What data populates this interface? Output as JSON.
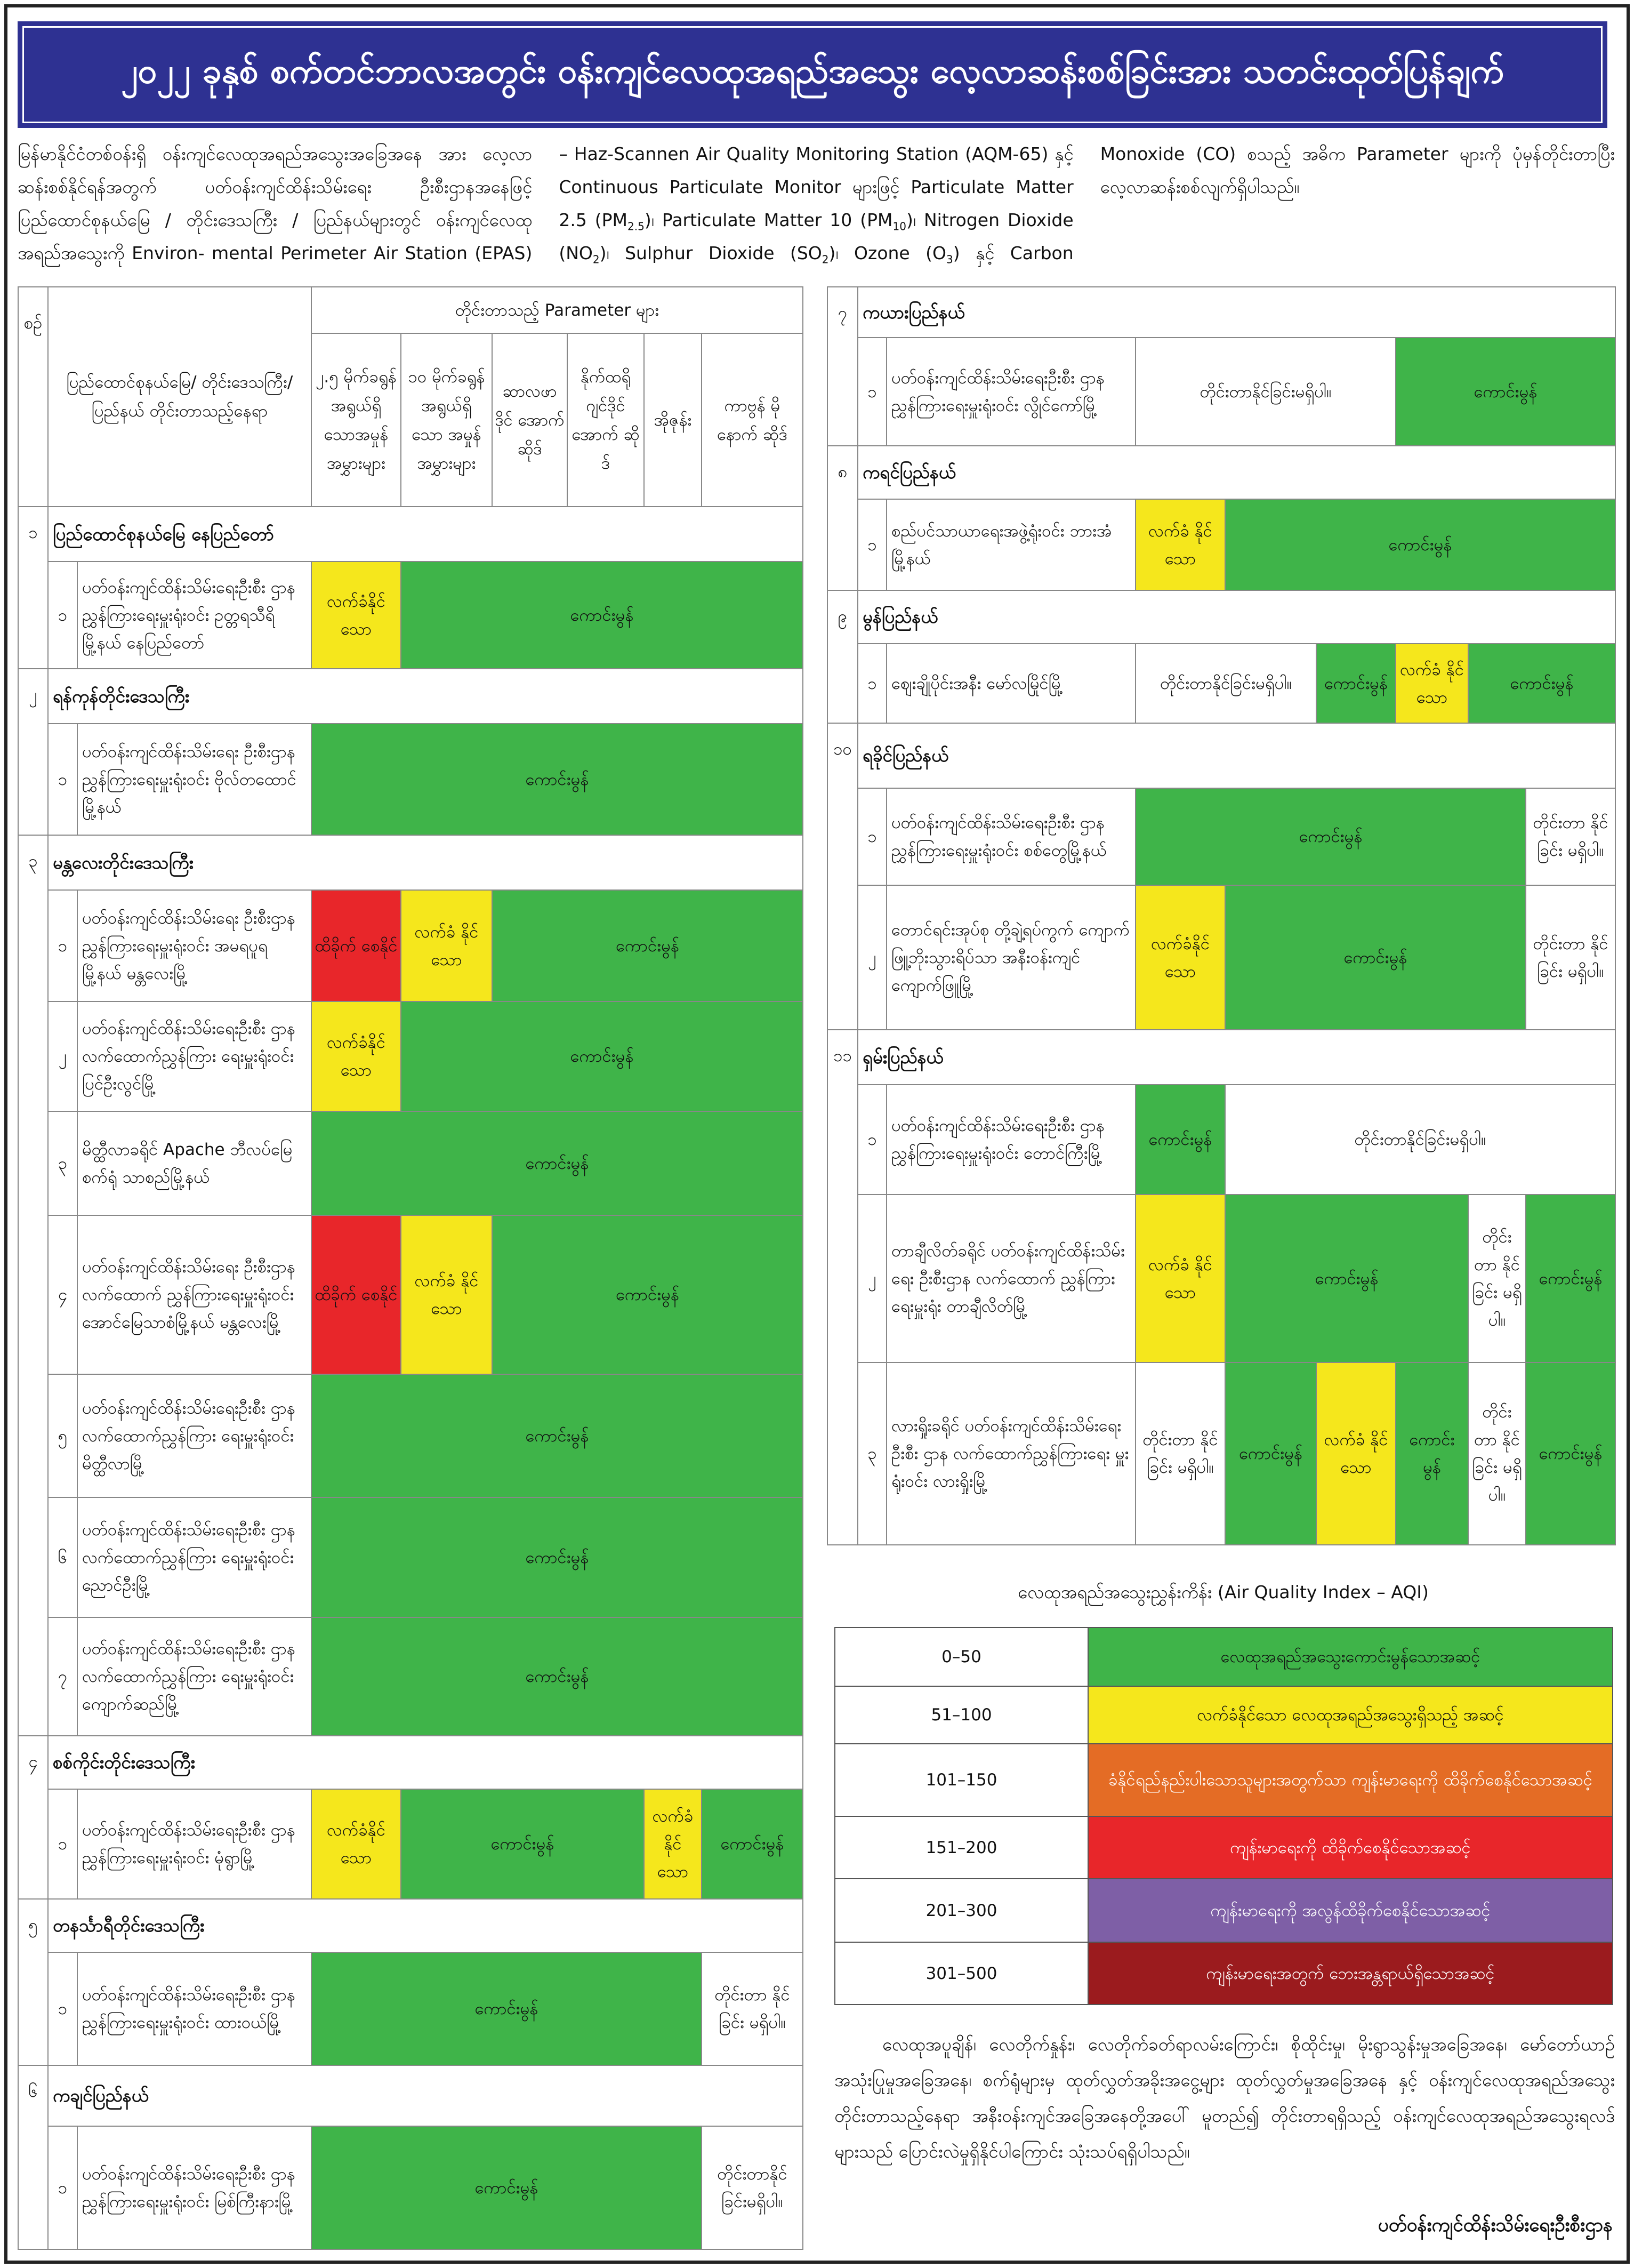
{
  "title": "၂၀၂၂ ခုနှစ် စက်တင်ဘာလအတွင်း ဝန်းကျင်လေထုအရည်အသွေး လေ့လာဆန်းစစ်ခြင်းအား သတင်းထုတ်ပြန်ချက်",
  "intro": {
    "p1": "မြန်မာနိုင်ငံတစ်ဝန်းရှိ ဝန်းကျင်လေထုအရည်အသွေးအခြေအနေ အား လေ့လာဆန်းစစ်နိုင်ရန်အတွက် ပတ်ဝန်းကျင်ထိန်းသိမ်းရေး ဦးစီးဌာနအနေဖြင့် ပြည်ထောင်စုနယ်မြေ / တိုင်းဒေသကြီး / ပြည်နယ်များတွင် ဝန်းကျင်လေထုအရည်အသွေးကို Environ- mental Perimeter Air Station (EPAS) – Haz-Scannen Air Quality Monitoring Station (AQM-65) နှင့် Continuous Particulate Monitor များဖြင့် Particulate Matter 2.5 (PM",
    "s1": "2.5",
    "p2": ")၊ Particulate Matter 10 (PM",
    "s2": "10",
    "p3": ")၊ Nitrogen Dioxide (NO",
    "s3": "2",
    "p4": ")၊ Sulphur Dioxide (SO",
    "s4": "2",
    "p5": ")၊ Ozone (O",
    "s5": "3",
    "p6": ") နှင့် Carbon Monoxide (CO) စသည့် အဓိက Parameter များကို ပုံမှန်တိုင်းတာပြီး လေ့လာဆန်းစစ်လျက်ရှိပါသည်။"
  },
  "header": {
    "no": "စဉ်",
    "location": "ပြည်ထောင်စုနယ်မြေ/ တိုင်းဒေသကြီး/ပြည်နယ် တိုင်းတာသည့်နေရာ",
    "params_title": "တိုင်းတာသည့် Parameter များ",
    "params": [
      "၂.၅ မိုက်ခရွန် အရွယ်ရှိ သောအမှုန် အမွှားများ",
      "၁၀ မိုက်ခရွန် အရွယ်ရှိ သော အမှုန် အမွှားများ",
      "ဆာလဖာ ဒိုင် အောက် ဆိုဒ်",
      "နိုက်ထရို ဂျင်ဒိုင် အောက် ဆိုဒ်",
      "အိုဇုန်း",
      "ကာဗွန် မိုနောက် ဆိုဒ်"
    ]
  },
  "colors": {
    "green": "#3fb449",
    "yellow": "#f5e71c",
    "red": "#e8262a"
  },
  "left": {
    "sections": [
      {
        "no": "၁",
        "name": "ပြည်ထောင်စုနယ်မြေ နေပြည်တော်",
        "rows": [
          {
            "no": "၁",
            "name": "ပတ်ဝန်းကျင်ထိန်းသိမ်းရေးဦးစီး ဌာန ညွှန်ကြားရေးမှူးရုံးဝင်း ဥတ္တရသီရိမြို့နယ် နေပြည်တော်",
            "cells": [
              {
                "text": "လက်ခံနိုင် သော",
                "color": "yellow",
                "span": 1
              },
              {
                "text": "ကောင်းမွန်",
                "color": "green",
                "span": 5
              }
            ]
          }
        ]
      },
      {
        "no": "၂",
        "name": "ရန်ကုန်တိုင်းဒေသကြီး",
        "rows": [
          {
            "no": "၁",
            "name": "ပတ်ဝန်းကျင်ထိန်းသိမ်းရေး ဦးစီးဌာန ညွှန်ကြားရေးမှူးရုံးဝင်း ဗိုလ်တထောင်မြို့နယ်",
            "cells": [
              {
                "text": "ကောင်းမွန်",
                "color": "green",
                "span": 6
              }
            ]
          }
        ]
      },
      {
        "no": "၃",
        "name": "မန္တလေးတိုင်းဒေသကြီး",
        "rows": [
          {
            "no": "၁",
            "name": "ပတ်ဝန်းကျင်ထိန်းသိမ်းရေး ဦးစီးဌာန ညွှန်ကြားရေးမှူးရုံးဝင်း အမရပူရမြို့နယ် မန္တလေးမြို့",
            "cells": [
              {
                "text": "ထိခိုက် စေနိုင်",
                "color": "red",
                "span": 1
              },
              {
                "text": "လက်ခံ နိုင်သော",
                "color": "yellow",
                "span": 1
              },
              {
                "text": "ကောင်းမွန်",
                "color": "green",
                "span": 4
              }
            ]
          },
          {
            "no": "၂",
            "name": "ပတ်ဝန်းကျင်ထိန်းသိမ်းရေးဦးစီး ဌာန လက်ထောက်ညွှန်ကြား ရေးမှူးရုံးဝင်း ပြင်ဦးလွင်မြို့",
            "cells": [
              {
                "text": "လက်ခံနိုင် သော",
                "color": "yellow",
                "span": 1
              },
              {
                "text": "ကောင်းမွန်",
                "color": "green",
                "span": 5
              }
            ]
          },
          {
            "no": "၃",
            "name": "မိတ္ထီလာခရိုင် Apache ဘီလပ်မြေစက်ရုံ သာစည်မြို့နယ်",
            "cells": [
              {
                "text": "ကောင်းမွန်",
                "color": "green",
                "span": 6
              }
            ]
          },
          {
            "no": "၄",
            "name": "ပတ်ဝန်းကျင်ထိန်းသိမ်းရေး ဦးစီးဌာန လက်ထောက် ညွှန်ကြားရေးမှူးရုံးဝင်း အောင်မြေသာစံမြို့နယ် မန္တလေးမြို့",
            "cells": [
              {
                "text": "ထိခိုက် စေနိုင်",
                "color": "red",
                "span": 1
              },
              {
                "text": "လက်ခံ နိုင်သော",
                "color": "yellow",
                "span": 1
              },
              {
                "text": "ကောင်းမွန်",
                "color": "green",
                "span": 4
              }
            ]
          },
          {
            "no": "၅",
            "name": "ပတ်ဝန်းကျင်ထိန်းသိမ်းရေးဦးစီး ဌာန လက်ထောက်ညွှန်ကြား ရေးမှူးရုံးဝင်း မိတ္ထီလာမြို့",
            "cells": [
              {
                "text": "ကောင်းမွန်",
                "color": "green",
                "span": 6
              }
            ]
          },
          {
            "no": "၆",
            "name": "ပတ်ဝန်းကျင်ထိန်းသိမ်းရေးဦးစီး ဌာန လက်ထောက်ညွှန်ကြား ရေးမှူးရုံးဝင်း ညောင်ဦးမြို့",
            "cells": [
              {
                "text": "ကောင်းမွန်",
                "color": "green",
                "span": 6
              }
            ]
          },
          {
            "no": "၇",
            "name": "ပတ်ဝန်းကျင်ထိန်းသိမ်းရေးဦးစီး ဌာန လက်ထောက်ညွှန်ကြား ရေးမှူးရုံးဝင်း ကျောက်ဆည်မြို့",
            "cells": [
              {
                "text": "ကောင်းမွန်",
                "color": "green",
                "span": 6
              }
            ]
          }
        ]
      },
      {
        "no": "၄",
        "name": "စစ်ကိုင်းတိုင်းဒေသကြီး",
        "rows": [
          {
            "no": "၁",
            "name": "ပတ်ဝန်းကျင်ထိန်းသိမ်းရေးဦးစီး ဌာန ညွှန်ကြားရေးမှူးရုံးဝင်း မုံရွာမြို့",
            "cells": [
              {
                "text": "လက်ခံနိုင် သော",
                "color": "yellow",
                "span": 1
              },
              {
                "text": "ကောင်းမွန်",
                "color": "green",
                "span": 3
              },
              {
                "text": "လက်ခံ နိုင် သော",
                "color": "yellow",
                "span": 1
              },
              {
                "text": "ကောင်းမွန်",
                "color": "green",
                "span": 1
              }
            ]
          }
        ]
      },
      {
        "no": "၅",
        "name": "တနင်္သာရီတိုင်းဒေသကြီး",
        "rows": [
          {
            "no": "၁",
            "name": "ပတ်ဝန်းကျင်ထိန်းသိမ်းရေးဦးစီး ဌာန ညွှန်ကြားရေးမှူးရုံးဝင်း ထားဝယ်မြို့",
            "cells": [
              {
                "text": "ကောင်းမွန်",
                "color": "green",
                "span": 5
              },
              {
                "text": "တိုင်းတာ နိုင်ခြင်း မရှိပါ။",
                "color": "white",
                "span": 1
              }
            ]
          }
        ]
      },
      {
        "no": "၆",
        "name": "ကချင်ပြည်နယ်",
        "rows": [
          {
            "no": "၁",
            "name": "ပတ်ဝန်းကျင်ထိန်းသိမ်းရေးဦးစီး ဌာန ညွှန်ကြားရေးမှူးရုံးဝင်း မြစ်ကြီးနားမြို့",
            "cells": [
              {
                "text": "ကောင်းမွန်",
                "color": "green",
                "span": 5
              },
              {
                "text": "တိုင်းတာနိုင် ခြင်းမရှိပါ။",
                "color": "white",
                "span": 1
              }
            ]
          }
        ]
      }
    ]
  },
  "right": {
    "sections": [
      {
        "no": "၇",
        "name": "ကယားပြည်နယ်",
        "rows": [
          {
            "no": "၁",
            "name": "ပတ်ဝန်းကျင်ထိန်းသိမ်းရေးဦးစီး ဌာန ညွှန်ကြားရေးမှူးရုံးဝင်း လွိုင်ကော်မြို့",
            "cells": [
              {
                "text": "တိုင်းတာနိုင်ခြင်းမရှိပါ။",
                "color": "white",
                "span": 3
              },
              {
                "text": "ကောင်းမွန်",
                "color": "green",
                "span": 3
              }
            ]
          }
        ]
      },
      {
        "no": "၈",
        "name": "ကရင်ပြည်နယ်",
        "rows": [
          {
            "no": "၁",
            "name": "စည်ပင်သာယာရေးအဖွဲ့ရုံးဝင်း ဘားအံမြို့နယ်",
            "cells": [
              {
                "text": "လက်ခံ နိုင်သော",
                "color": "yellow",
                "span": 1
              },
              {
                "text": "ကောင်းမွန်",
                "color": "green",
                "span": 5
              }
            ]
          }
        ]
      },
      {
        "no": "၉",
        "name": "မွန်ပြည်နယ်",
        "rows": [
          {
            "no": "၁",
            "name": "ဈေးချိုပိုင်းအနီး မော်လမြိုင်မြို့",
            "cells": [
              {
                "text": "တိုင်းတာနိုင်ခြင်းမရှိပါ။",
                "color": "white",
                "span": 2
              },
              {
                "text": "ကောင်းမွန်",
                "color": "green",
                "span": 1
              },
              {
                "text": "လက်ခံ နိုင်သော",
                "color": "yellow",
                "span": 1
              },
              {
                "text": "ကောင်းမွန်",
                "color": "green",
                "span": 2
              }
            ]
          }
        ]
      },
      {
        "no": "၁၀",
        "name": "ရခိုင်ပြည်နယ်",
        "rows": [
          {
            "no": "၁",
            "name": "ပတ်ဝန်းကျင်ထိန်းသိမ်းရေးဦးစီး ဌာန ညွှန်ကြားရေးမှူးရုံးဝင်း စစ်တွေမြို့နယ်",
            "cells": [
              {
                "text": "ကောင်းမွန်",
                "color": "green",
                "span": 5
              },
              {
                "text": "တိုင်းတာ နိုင်ခြင်း မရှိပါ။",
                "color": "white",
                "span": 1
              }
            ]
          },
          {
            "no": "၂",
            "name": "တောင်ရင်းအုပ်စု တို့ချဲ့ရပ်ကွက် ကျောက်ဖြူ့ဘိုးသွားရိပ်သာ အနီးဝန်းကျင် ကျောက်ဖြူမြို့",
            "cells": [
              {
                "text": "လက်ခံနိုင် သော",
                "color": "yellow",
                "span": 1
              },
              {
                "text": "ကောင်းမွန်",
                "color": "green",
                "span": 4
              },
              {
                "text": "တိုင်းတာ နိုင်ခြင်း မရှိပါ။",
                "color": "white",
                "span": 1
              }
            ]
          }
        ]
      },
      {
        "no": "၁၁",
        "name": "ရှမ်းပြည်နယ်",
        "rows": [
          {
            "no": "၁",
            "name": "ပတ်ဝန်းကျင်ထိန်းသိမ်းရေးဦးစီး ဌာန ညွှန်ကြားရေးမှူးရုံးဝင်း တောင်ကြီးမြို့",
            "cells": [
              {
                "text": "ကောင်းမွန်",
                "color": "green",
                "span": 1
              },
              {
                "text": "တိုင်းတာနိုင်ခြင်းမရှိပါ။",
                "color": "white",
                "span": 5
              }
            ]
          },
          {
            "no": "၂",
            "name": "တာချီလိတ်ခရိုင် ပတ်ဝန်းကျင်ထိန်းသိမ်းရေး ဦးစီးဌာန လက်ထောက် ညွှန်ကြားရေးမှူးရုံး တာချီလိတ်မြို့",
            "cells": [
              {
                "text": "လက်ခံ နိုင်သော",
                "color": "yellow",
                "span": 1
              },
              {
                "text": "ကောင်းမွန်",
                "color": "green",
                "span": 3
              },
              {
                "text": "တိုင်း တာ နိုင် ခြင်း မရှိပါ။",
                "color": "white",
                "span": 1
              },
              {
                "text": "ကောင်းမွန်",
                "color": "green",
                "span": 1
              }
            ]
          },
          {
            "no": "၃",
            "name": "လားရှိုးခရိုင် ပတ်ဝန်းကျင်ထိန်းသိမ်းရေးဦးစီး ဌာန လက်ထောက်ညွှန်ကြားရေး မှူးရုံးဝင်း လားရှိုးမြို့",
            "cells": [
              {
                "text": "တိုင်းတာ နိုင်ခြင်း မရှိပါ။",
                "color": "white",
                "span": 1
              },
              {
                "text": "ကောင်းမွန်",
                "color": "green",
                "span": 1
              },
              {
                "text": "လက်ခံ နိုင်သော",
                "color": "yellow",
                "span": 1
              },
              {
                "text": "ကောင်း မွန်",
                "color": "green",
                "span": 1
              },
              {
                "text": "တိုင်း တာ နိုင် ခြင်း မရှိပါ။",
                "color": "white",
                "span": 1
              },
              {
                "text": "ကောင်းမွန်",
                "color": "green",
                "span": 1
              }
            ]
          }
        ]
      }
    ]
  },
  "aqi": {
    "title": "လေထုအရည်အသွေးညွှန်းကိန်း (Air Quality Index – AQI)",
    "rows": [
      {
        "range": "0–50",
        "label": "လေထုအရည်အသွေးကောင်းမွန်သောအဆင့်",
        "color": "#3fb449",
        "text_color": "#111"
      },
      {
        "range": "51–100",
        "label": "လက်ခံနိုင်သော လေထုအရည်အသွေးရှိသည့် အဆင့်",
        "color": "#f5e71c",
        "text_color": "#111"
      },
      {
        "range": "101–150",
        "label": "ခံနိုင်ရည်နည်းပါးသောသူများအတွက်သာ ကျန်းမာရေးကို ထိခိုက်စေနိုင်သောအဆင့်",
        "color": "#e46c25",
        "text_color": "#fff"
      },
      {
        "range": "151–200",
        "label": "ကျန်းမာရေးကို ထိခိုက်စေနိုင်သောအဆင့်",
        "color": "#e8262a",
        "text_color": "#fff"
      },
      {
        "range": "201–300",
        "label": "ကျန်းမာရေးကို အလွန်ထိခိုက်စေနိုင်သောအဆင့်",
        "color": "#7e5fa6",
        "text_color": "#fff"
      },
      {
        "range": "301–500",
        "label": "ကျန်းမာရေးအတွက် ဘေးအန္တရာယ်ရှိသောအဆင့်",
        "color": "#9b1b1e",
        "text_color": "#fff"
      }
    ]
  },
  "note": "လေထုအပူချိန်၊ လေတိုက်နှုန်း၊ လေတိုက်ခတ်ရာလမ်းကြောင်း၊ စိုထိုင်းမှု၊ မိုးရွာသွန်းမှုအခြေအနေ၊ မော်တော်ယာဉ်အသုံးပြုမှုအခြေအနေ၊ စက်ရုံများမှ ထုတ်လွှတ်အခိုးအငွေ့များ ထုတ်လွှတ်မှုအခြေအနေ နှင့် ဝန်းကျင်လေထုအရည်အသွေးတိုင်းတာသည့်နေရာ အနီးဝန်းကျင်အခြေအနေတို့အပေါ် မူတည်၍ တိုင်းတာရရှိသည့် ဝန်းကျင်လေထုအရည်အသွေးရလဒ်များသည် ပြောင်းလဲမှုရှိနိုင်ပါကြောင်း သုံးသပ်ရရှိပါသည်။",
  "signature": "ပတ်ဝန်းကျင်ထိန်းသိမ်းရေးဦးစီးဌာန"
}
